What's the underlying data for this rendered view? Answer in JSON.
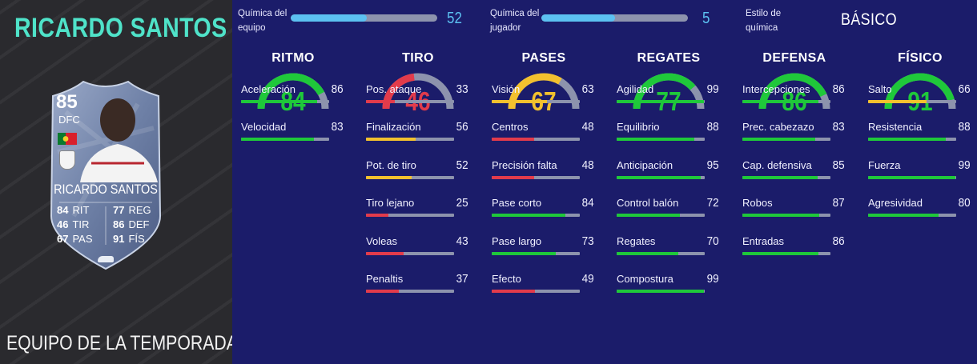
{
  "player": {
    "name": "RICARDO SANTOS",
    "edition": "EQUIPO DE LA TEMPORADA",
    "card": {
      "rating": "85",
      "position": "DFC",
      "name": "RICARDO SANTOS",
      "stats": [
        {
          "value": "84",
          "label": "RIT"
        },
        {
          "value": "77",
          "label": "REG"
        },
        {
          "value": "46",
          "label": "TIR"
        },
        {
          "value": "86",
          "label": "DEF"
        },
        {
          "value": "67",
          "label": "PAS"
        },
        {
          "value": "91",
          "label": "FÍS"
        }
      ]
    }
  },
  "chemistry": {
    "team_label_line1": "Química del",
    "team_label_line2": "equipo",
    "team_value": "52",
    "team_fraction": 0.52,
    "player_label_line1": "Química del",
    "player_label_line2": "jugador",
    "player_value": "5",
    "player_fraction": 0.5,
    "style_label_line1": "Estilo de",
    "style_label_line2": "química",
    "style_value": "BÁSICO"
  },
  "colors": {
    "green": "#1fc83a",
    "yellow": "#f2c12e",
    "red": "#e23b4b",
    "track": "#8d93ad",
    "accent": "#5cc1f1",
    "title": "#4fe3c9"
  },
  "categories": [
    {
      "name": "RITMO",
      "value": "84",
      "stats": [
        {
          "label": "Aceleración",
          "value": "86"
        },
        {
          "label": "Velocidad",
          "value": "83"
        }
      ]
    },
    {
      "name": "TIRO",
      "value": "46",
      "stats": [
        {
          "label": "Pos. ataque",
          "value": "33"
        },
        {
          "label": "Finalización",
          "value": "56"
        },
        {
          "label": "Pot. de tiro",
          "value": "52"
        },
        {
          "label": "Tiro lejano",
          "value": "25"
        },
        {
          "label": "Voleas",
          "value": "43"
        },
        {
          "label": "Penaltis",
          "value": "37"
        }
      ]
    },
    {
      "name": "PASES",
      "value": "67",
      "stats": [
        {
          "label": "Visión",
          "value": "63"
        },
        {
          "label": "Centros",
          "value": "48"
        },
        {
          "label": "Precisión falta",
          "value": "48"
        },
        {
          "label": "Pase corto",
          "value": "84"
        },
        {
          "label": "Pase largo",
          "value": "73"
        },
        {
          "label": "Efecto",
          "value": "49"
        }
      ]
    },
    {
      "name": "REGATES",
      "value": "77",
      "stats": [
        {
          "label": "Agilidad",
          "value": "99"
        },
        {
          "label": "Equilibrio",
          "value": "88"
        },
        {
          "label": "Anticipación",
          "value": "95"
        },
        {
          "label": "Control balón",
          "value": "72"
        },
        {
          "label": "Regates",
          "value": "70"
        },
        {
          "label": "Compostura",
          "value": "99"
        }
      ]
    },
    {
      "name": "DEFENSA",
      "value": "86",
      "stats": [
        {
          "label": "Intercepciones",
          "value": "86"
        },
        {
          "label": "Prec. cabezazo",
          "value": "83"
        },
        {
          "label": "Cap. defensiva",
          "value": "85"
        },
        {
          "label": "Robos",
          "value": "87"
        },
        {
          "label": "Entradas",
          "value": "86"
        }
      ]
    },
    {
      "name": "FÍSICO",
      "value": "91",
      "stats": [
        {
          "label": "Salto",
          "value": "66"
        },
        {
          "label": "Resistencia",
          "value": "88"
        },
        {
          "label": "Fuerza",
          "value": "99"
        },
        {
          "label": "Agresividad",
          "value": "80"
        }
      ]
    }
  ]
}
